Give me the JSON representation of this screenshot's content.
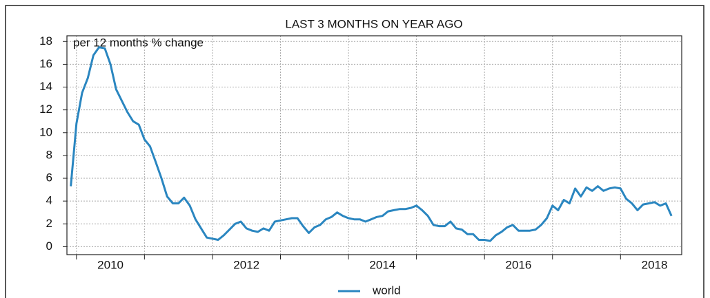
{
  "chart_data": {
    "type": "line",
    "title": "LAST 3 MONTHS ON YEAR AGO",
    "y_label": "per 12 months % change",
    "x": [
      2009.917,
      2010.0,
      2010.083,
      2010.167,
      2010.25,
      2010.333,
      2010.417,
      2010.5,
      2010.583,
      2010.667,
      2010.75,
      2010.833,
      2010.917,
      2011.0,
      2011.083,
      2011.167,
      2011.25,
      2011.333,
      2011.417,
      2011.5,
      2011.583,
      2011.667,
      2011.75,
      2011.833,
      2011.917,
      2012.0,
      2012.083,
      2012.167,
      2012.25,
      2012.333,
      2012.417,
      2012.5,
      2012.583,
      2012.667,
      2012.75,
      2012.833,
      2012.917,
      2013.0,
      2013.083,
      2013.167,
      2013.25,
      2013.333,
      2013.417,
      2013.5,
      2013.583,
      2013.667,
      2013.75,
      2013.833,
      2013.917,
      2014.0,
      2014.083,
      2014.167,
      2014.25,
      2014.333,
      2014.417,
      2014.5,
      2014.583,
      2014.667,
      2014.75,
      2014.833,
      2014.917,
      2015.0,
      2015.083,
      2015.167,
      2015.25,
      2015.333,
      2015.417,
      2015.5,
      2015.583,
      2015.667,
      2015.75,
      2015.833,
      2015.917,
      2016.0,
      2016.083,
      2016.167,
      2016.25,
      2016.333,
      2016.417,
      2016.5,
      2016.583,
      2016.667,
      2016.75,
      2016.833,
      2016.917,
      2017.0,
      2017.083,
      2017.167,
      2017.25,
      2017.333,
      2017.417,
      2017.5,
      2017.583,
      2017.667,
      2017.75,
      2017.833,
      2017.917,
      2018.0,
      2018.083,
      2018.167,
      2018.25,
      2018.333,
      2018.417,
      2018.5,
      2018.583,
      2018.667,
      2018.75
    ],
    "series": [
      {
        "name": "world",
        "color": "#2a86c0",
        "values": [
          5.3,
          10.8,
          13.5,
          14.8,
          16.8,
          17.5,
          17.4,
          16.0,
          13.8,
          12.8,
          11.8,
          11.0,
          10.7,
          9.4,
          8.8,
          7.4,
          6.0,
          4.4,
          3.8,
          3.8,
          4.3,
          3.6,
          2.4,
          1.6,
          0.8,
          0.7,
          0.6,
          1.0,
          1.5,
          2.0,
          2.2,
          1.6,
          1.4,
          1.3,
          1.6,
          1.4,
          2.2,
          2.3,
          2.4,
          2.5,
          2.5,
          1.8,
          1.2,
          1.7,
          1.9,
          2.4,
          2.6,
          3.0,
          2.7,
          2.5,
          2.4,
          2.4,
          2.2,
          2.4,
          2.6,
          2.7,
          3.1,
          3.2,
          3.3,
          3.3,
          3.4,
          3.6,
          3.2,
          2.7,
          1.9,
          1.8,
          1.8,
          2.2,
          1.6,
          1.5,
          1.1,
          1.1,
          0.6,
          0.6,
          0.5,
          1.0,
          1.3,
          1.7,
          1.9,
          1.4,
          1.4,
          1.4,
          1.5,
          1.9,
          2.5,
          3.6,
          3.2,
          4.1,
          3.8,
          5.1,
          4.4,
          5.2,
          4.9,
          5.3,
          4.9,
          5.1,
          5.2,
          5.1,
          4.2,
          3.8,
          3.2,
          3.7,
          3.8,
          3.9,
          3.6,
          3.8,
          2.7
        ]
      }
    ],
    "xlim": [
      2009.86,
      2018.9
    ],
    "xticks": [
      2010,
      2012,
      2014,
      2016,
      2018
    ],
    "ylim": [
      -0.7,
      18.5
    ],
    "yticks": [
      0,
      2,
      4,
      6,
      8,
      10,
      12,
      14,
      16,
      18
    ],
    "grid": true,
    "legend": "bottom"
  }
}
